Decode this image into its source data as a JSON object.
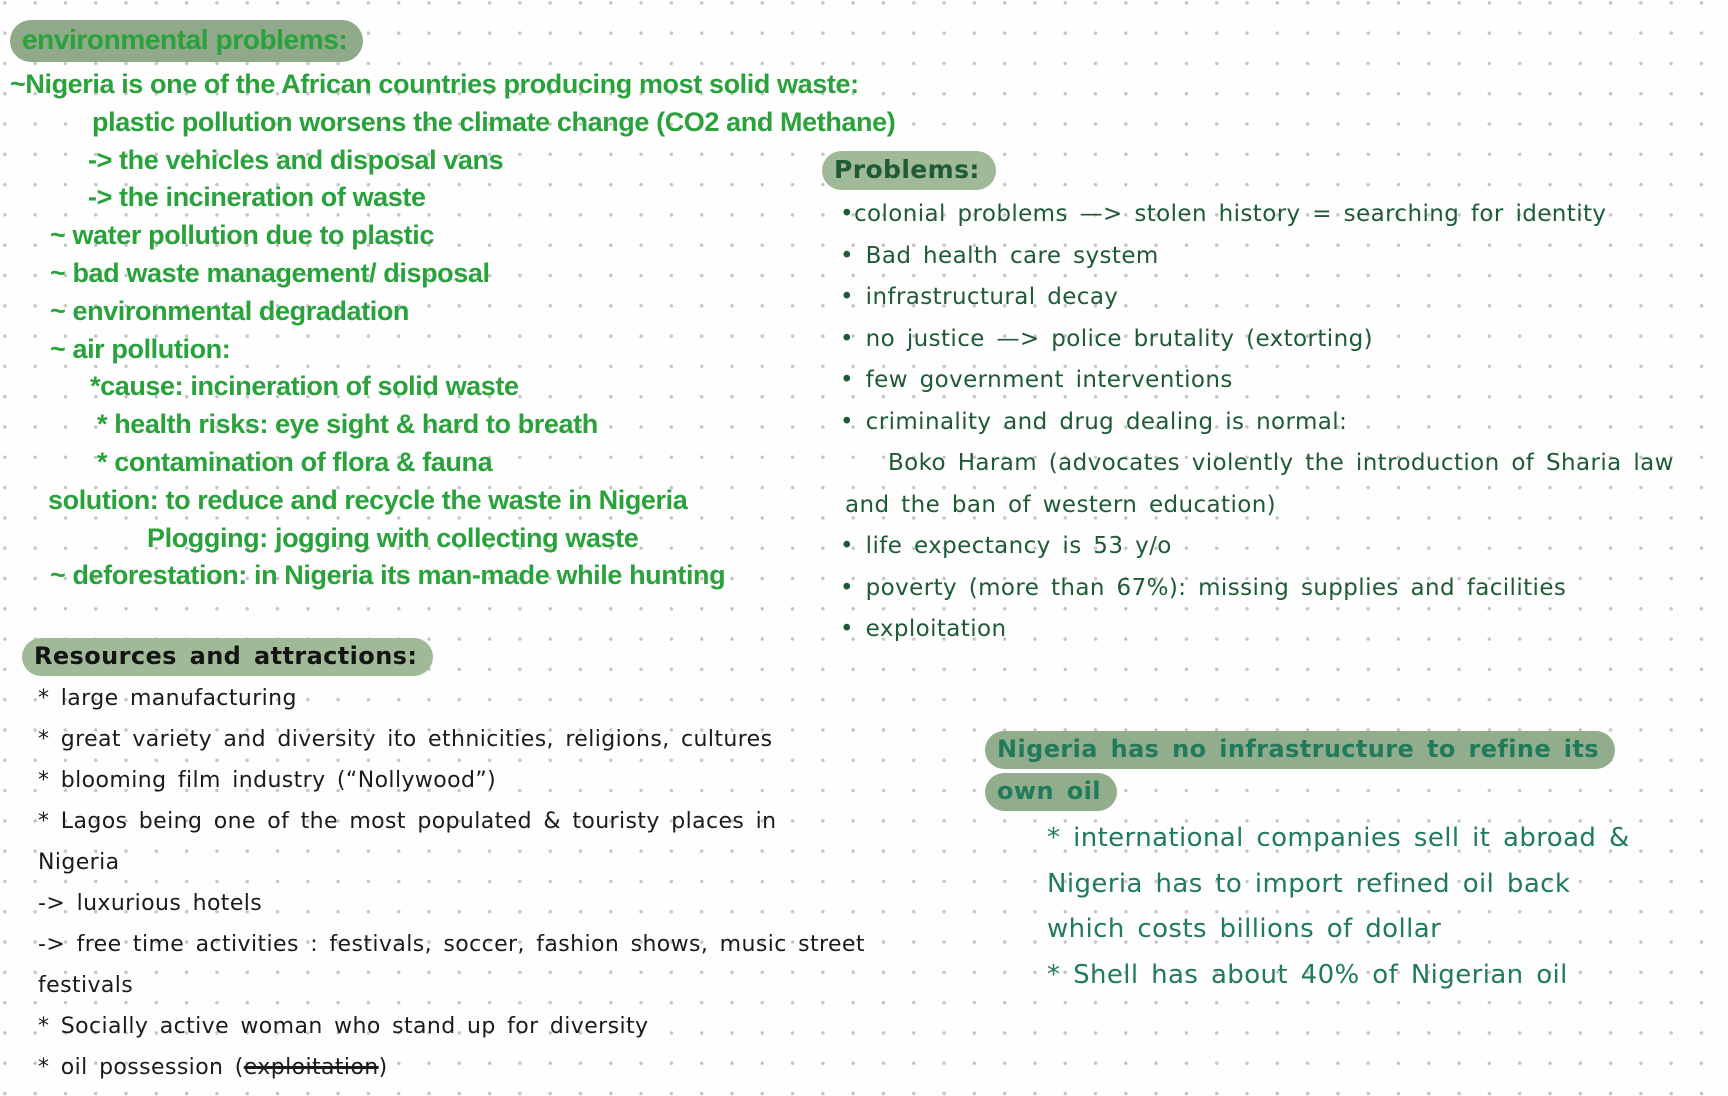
{
  "note": {
    "colors": {
      "bright_green_text": "#2aa23c",
      "dark_green_text": "#1e5a35",
      "teal_text": "#1f7b5c",
      "black_text": "#1b1b1b",
      "highlight_sage": "#9cb593",
      "dot_grid": "#c5c5c5"
    },
    "sections": {
      "environmental": {
        "title": "environmental problems:",
        "lines": [
          "~Nigeria is one of the African countries producing most solid waste:",
          "plastic pollution worsens the climate change (CO2 and Methane)",
          "-> the vehicles and disposal vans",
          "-> the incineration of waste",
          "~ water pollution due to plastic",
          "~ bad waste management/ disposal",
          "~ environmental degradation",
          "~ air pollution:",
          "*cause: incineration of solid waste",
          "* health risks: eye sight & hard to breath",
          "* contamination of  flora & fauna",
          "solution: to reduce and recycle the waste in Nigeria",
          "Plogging: jogging with collecting waste",
          "~ deforestation: in Nigeria its man-made while hunting"
        ]
      },
      "problems": {
        "title": "Problems:",
        "lines": [
          "•colonial problems —> stolen history = searching for identity",
          "• Bad health care system",
          "• infrastructural decay",
          "• no justice —> police brutality (extorting)",
          "• few government interventions",
          "• criminality and drug dealing is normal:",
          "Boko Haram (advocates violently the introduction of Sharia law",
          "and the ban of western education)",
          "• life expectancy is 53 y/o",
          "• poverty (more than 67%): missing supplies and facilities",
          "• exploitation"
        ]
      },
      "resources": {
        "title": "Resources and attractions:",
        "lines": [
          "* large manufacturing",
          "* great variety and diversity ito ethnicities, religions, cultures",
          "* blooming film industry (“Nollywood”)",
          "* Lagos being one of the most populated & touristy places in",
          "Nigeria",
          "-> luxurious hotels",
          "-> free time activities : festivals, soccer, fashion shows, music street",
          "festivals",
          "* Socially active woman who stand up for diversity"
        ],
        "oil_possession": {
          "prefix": "* oil possession (",
          "struck": "exploitation",
          "suffix": ")"
        }
      },
      "oil": {
        "title_lines": [
          "Nigeria has no infrastructure to refine its",
          "own oil"
        ],
        "lines": [
          "* international companies sell it abroad &",
          "Nigeria has to import refined oil back",
          "which costs billions of dollar",
          "* Shell has about 40% of Nigerian oil"
        ]
      }
    }
  }
}
